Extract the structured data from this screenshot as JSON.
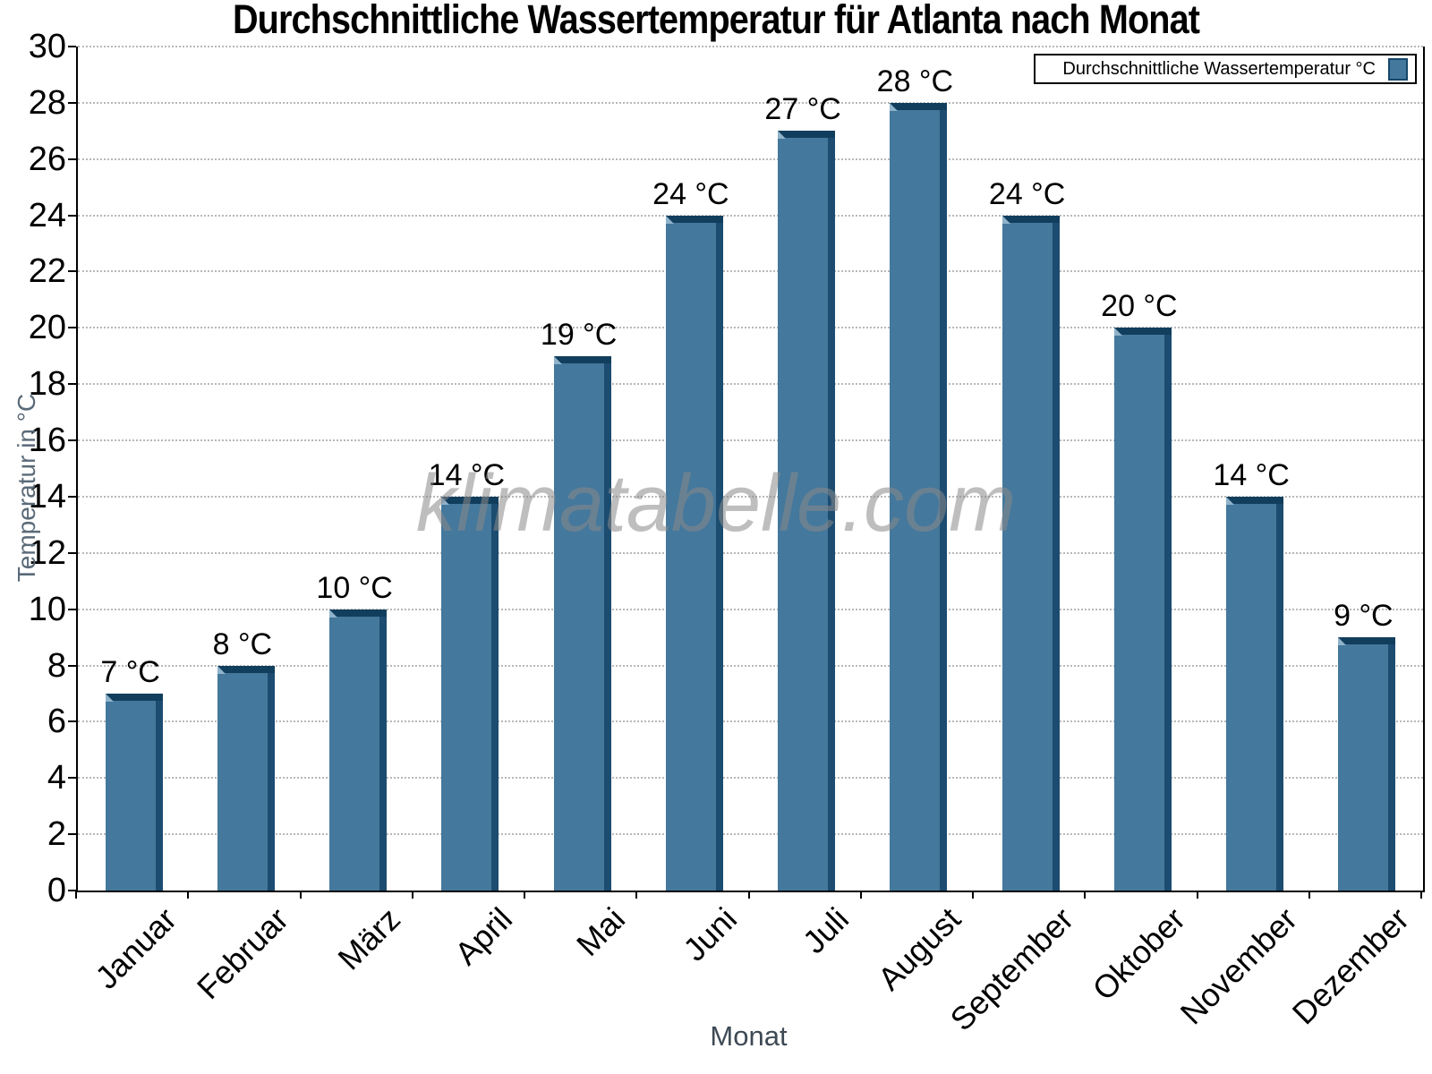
{
  "chart_data": {
    "type": "bar",
    "title": "Durchschnittliche Wassertemperatur für Atlanta nach Monat",
    "categories": [
      "Januar",
      "Februar",
      "März",
      "April",
      "Mai",
      "Juni",
      "Juli",
      "August",
      "September",
      "Oktober",
      "November",
      "Dezember"
    ],
    "values": [
      7,
      8,
      10,
      14,
      19,
      24,
      27,
      28,
      24,
      20,
      14,
      9
    ],
    "value_labels": [
      "7 °C",
      "8 °C",
      "10 °C",
      "14 °C",
      "19 °C",
      "24 °C",
      "27 °C",
      "28 °C",
      "24 °C",
      "20 °C",
      "14 °C",
      "9 °C"
    ],
    "xlabel": "Monat",
    "ylabel": "Temperatur in °C",
    "ylim": [
      0,
      30
    ],
    "y_tick_step": 2,
    "grid": "horizontal-dotted",
    "legend": "Durchschnittliche Wassertemperatur °C",
    "legend_position": "top-right",
    "watermark": "klimatabelle.com",
    "colors": {
      "bar_face": "#44789C",
      "bar_top_edge": "#123E5D",
      "bar_side_edge": "#1C4C70",
      "bar_bevel": "#8FB3CB",
      "grid": "#B8B8B8",
      "axis": "#000000",
      "watermark": "#8A8A8A",
      "y_axis_title": "#5A6A78",
      "x_axis_title": "#3E4A55",
      "tick_label": "#000000"
    }
  }
}
